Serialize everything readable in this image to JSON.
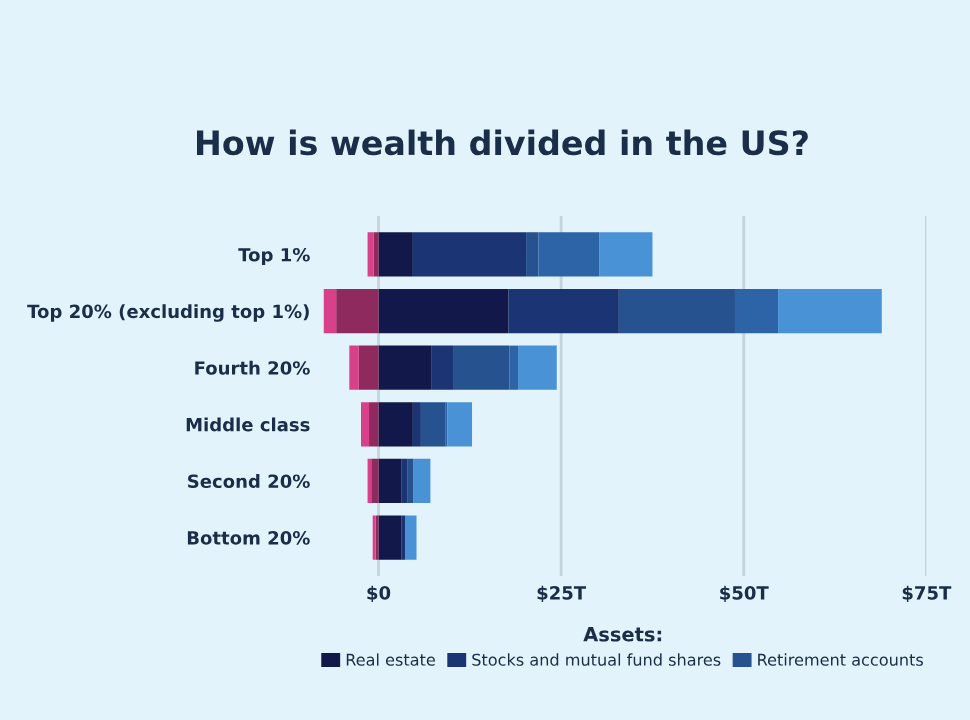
{
  "chart_data": {
    "type": "bar",
    "orientation": "horizontal",
    "stacked": true,
    "title": "How is wealth divided in the US?",
    "legend_title": "Assets:",
    "categories": [
      "Top 1%",
      "Top 20% (excluding top 1%)",
      "Fourth 20%",
      "Middle class",
      "Second 20%",
      "Bottom 20%"
    ],
    "series": [
      {
        "name": "Real estate",
        "color": "#12184a",
        "values": [
          4.7,
          17.8,
          7.2,
          4.7,
          3.1,
          3.1
        ]
      },
      {
        "name": "Stocks and mutual fund shares",
        "color": "#1b3474",
        "values": [
          15.5,
          15.1,
          3.0,
          1.1,
          0.9,
          0.6
        ]
      },
      {
        "name": "Retirement accounts",
        "color": "#26528f",
        "values": [
          1.7,
          15.9,
          7.7,
          3.4,
          0.8,
          0.0
        ]
      },
      {
        "color": "#2d64a8",
        "values": [
          8.3,
          5.9,
          1.2,
          0.2,
          0.0,
          0.0
        ]
      },
      {
        "color": "#4a92d6",
        "values": [
          7.3,
          14.2,
          5.3,
          3.4,
          2.3,
          1.5
        ]
      },
      {
        "color": "#8e2a5e",
        "values": [
          -0.7,
          -5.8,
          -2.7,
          -1.3,
          -1.0,
          -0.4
        ]
      },
      {
        "color": "#d9408a",
        "values": [
          -0.8,
          -1.7,
          -1.3,
          -1.1,
          -0.5,
          -0.4
        ]
      }
    ],
    "xlim": [
      -8,
      75
    ],
    "xticks": [
      {
        "value": 0,
        "label": "$0"
      },
      {
        "value": 25,
        "label": "$25T"
      },
      {
        "value": 50,
        "label": "$50T"
      },
      {
        "value": 75,
        "label": "$75T"
      }
    ],
    "grid": "x",
    "legend": "bottom"
  }
}
